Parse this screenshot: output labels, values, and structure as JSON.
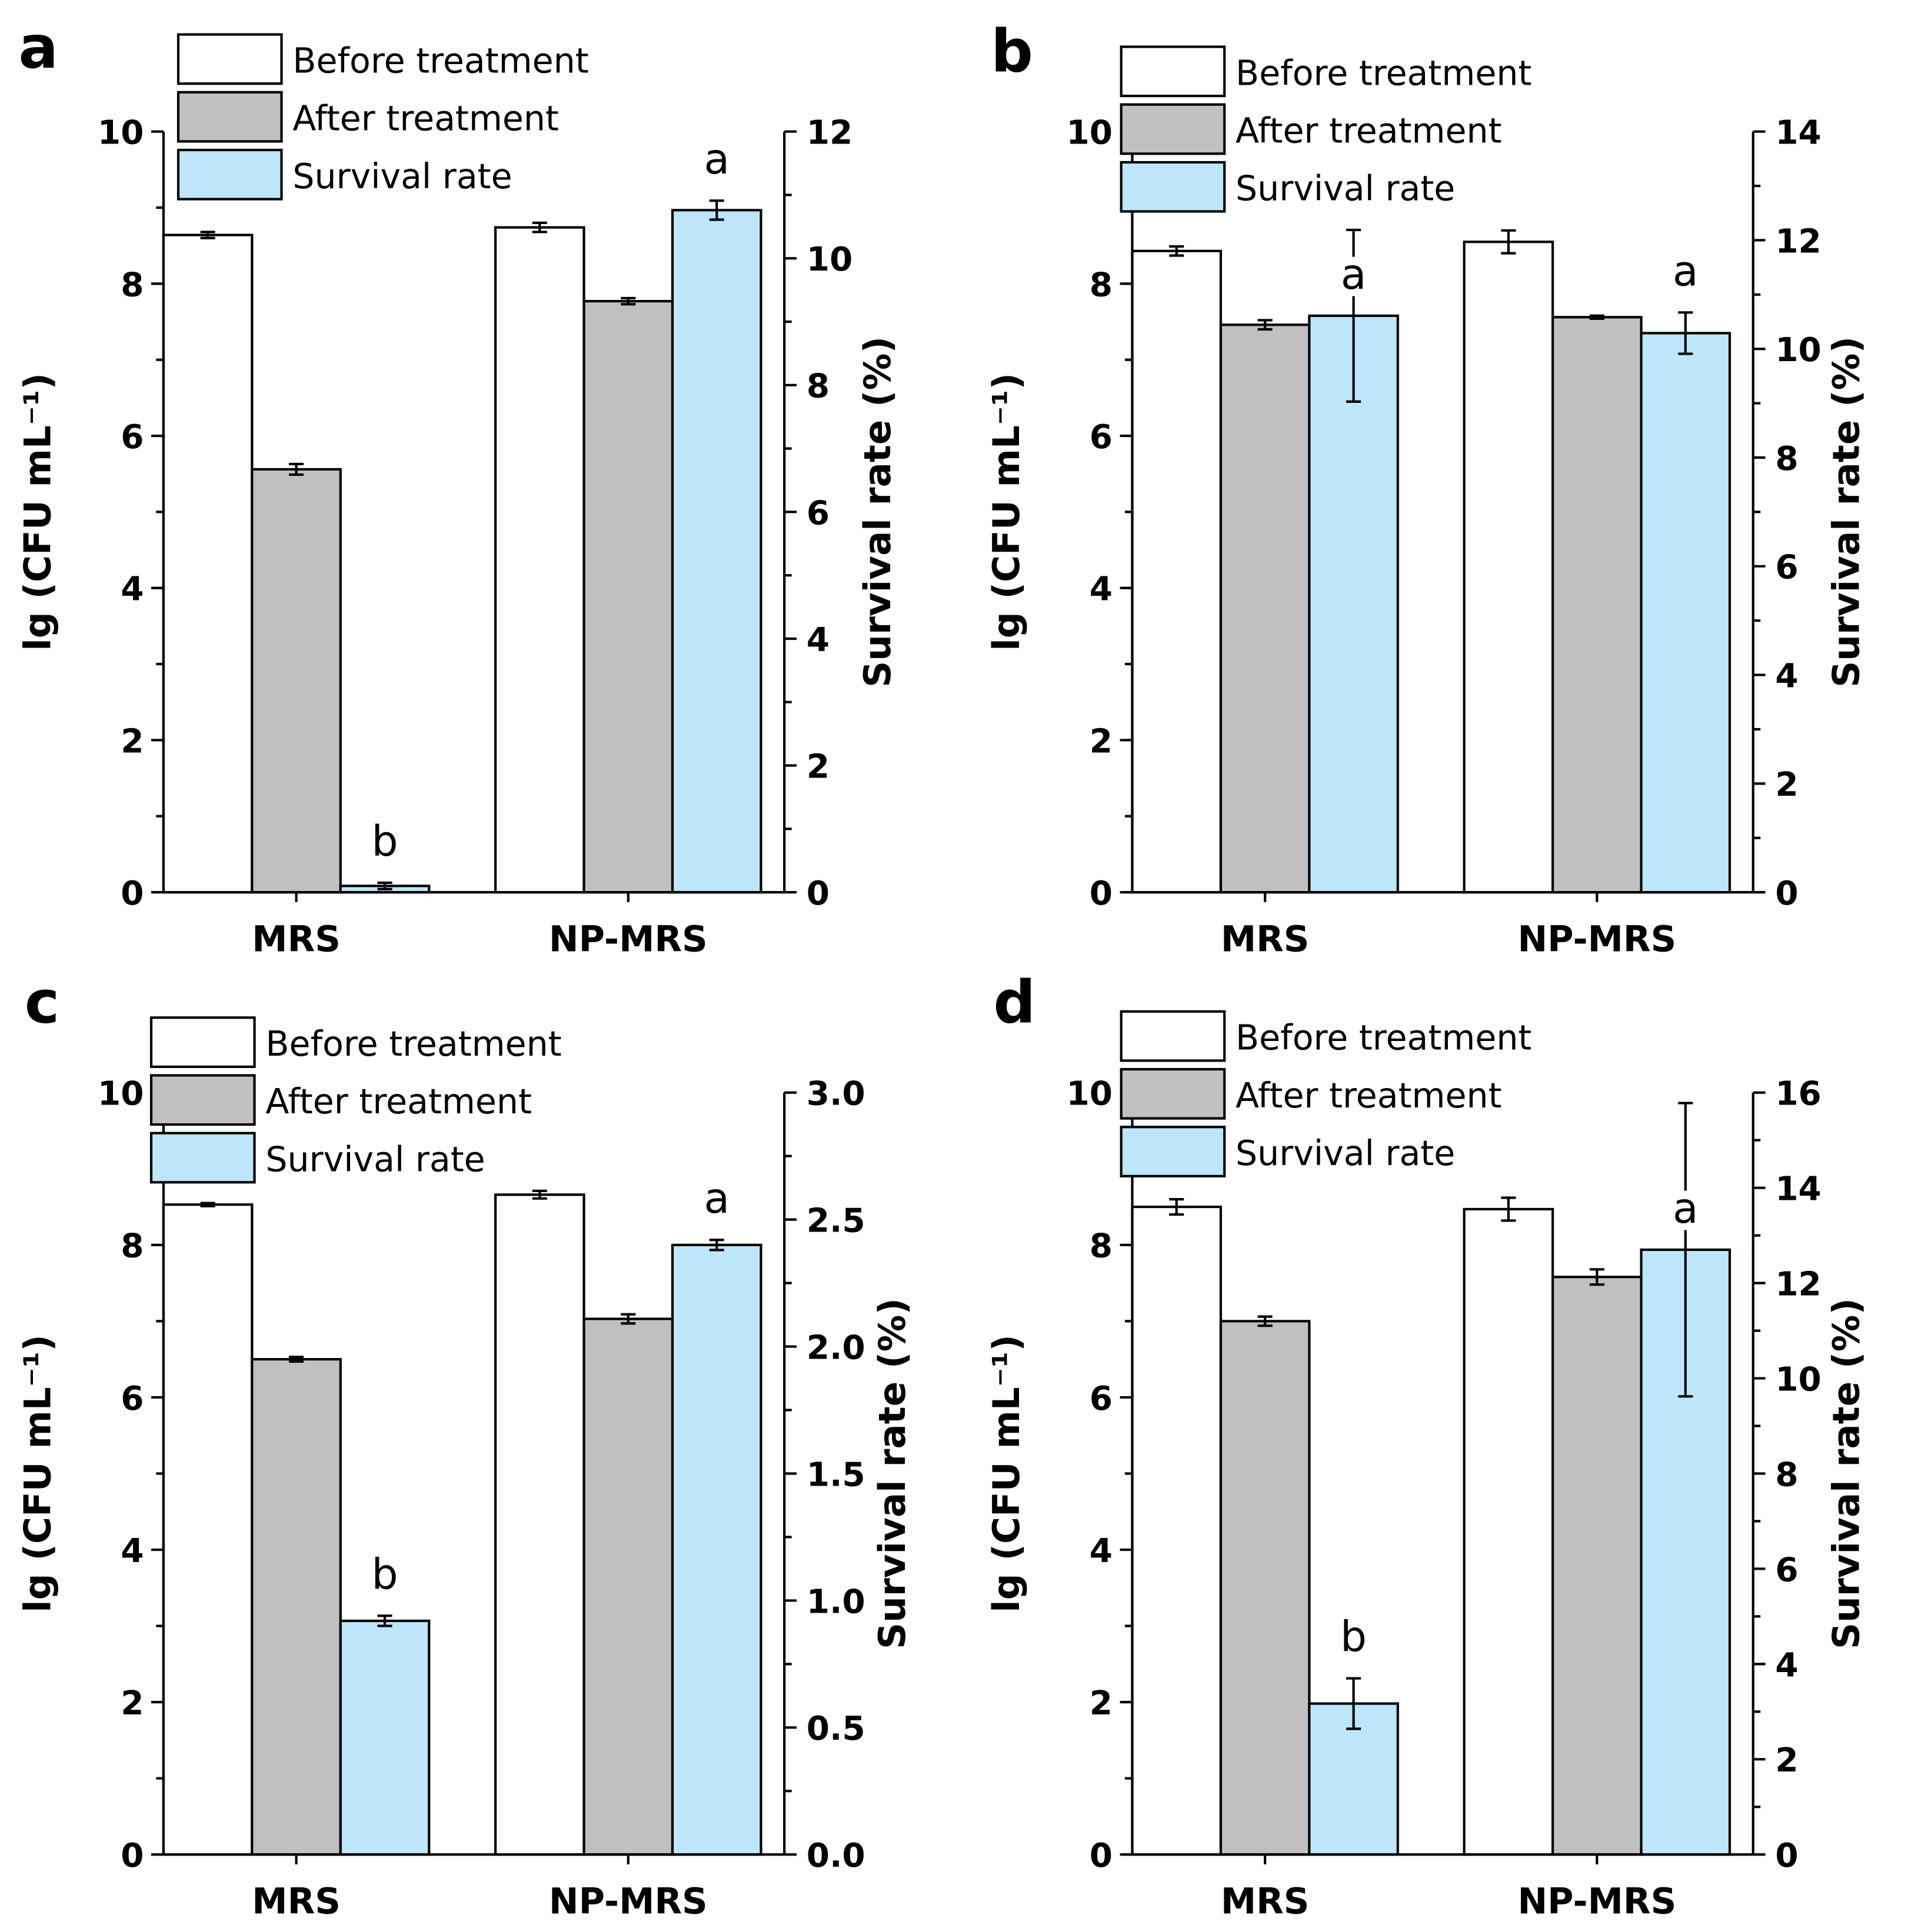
{
  "colors": {
    "before": "#ffffff",
    "after": "#c0c0c0",
    "survival": "#bde6fb",
    "axis": "#000000"
  },
  "chart_data": [
    {
      "type": "bar",
      "panel": "a",
      "categories": [
        "MRS",
        "NP-MRS"
      ],
      "legend": [
        "Before treatment",
        "After treatment",
        "Survival rate"
      ],
      "legend_position": "top-left",
      "ylabel": "lg (CFU mL⁻¹)",
      "ylim": [
        0,
        10
      ],
      "yticks": [
        "0",
        "2",
        "4",
        "6",
        "8",
        "10"
      ],
      "y2label": "Survival rate (%)",
      "y2lim": [
        0,
        12
      ],
      "y2ticks": [
        "0",
        "2",
        "4",
        "6",
        "8",
        "10",
        "12"
      ],
      "series": [
        {
          "name": "Before treatment",
          "axis": "left",
          "values": [
            8.64,
            8.74
          ],
          "errors": [
            0.04,
            0.06
          ]
        },
        {
          "name": "After treatment",
          "axis": "left",
          "values": [
            5.56,
            7.77
          ],
          "errors": [
            0.07,
            0.04
          ]
        },
        {
          "name": "Survival rate",
          "axis": "right",
          "values": [
            0.1,
            10.76
          ],
          "errors": [
            0.05,
            0.15
          ]
        }
      ],
      "significance": [
        "b",
        "a"
      ]
    },
    {
      "type": "bar",
      "panel": "b",
      "categories": [
        "MRS",
        "NP-MRS"
      ],
      "legend": [
        "Before treatment",
        "After treatment",
        "Survival rate"
      ],
      "legend_position": "top-left",
      "ylabel": "lg (CFU mL⁻¹)",
      "ylim": [
        0,
        10
      ],
      "yticks": [
        "0",
        "2",
        "4",
        "6",
        "8",
        "10"
      ],
      "y2label": "Survival rate (%)",
      "y2lim": [
        0,
        14
      ],
      "y2ticks": [
        "0",
        "2",
        "4",
        "6",
        "8",
        "10",
        "12",
        "14"
      ],
      "series": [
        {
          "name": "Before treatment",
          "axis": "left",
          "values": [
            8.43,
            8.55
          ],
          "errors": [
            0.06,
            0.15
          ]
        },
        {
          "name": "After treatment",
          "axis": "left",
          "values": [
            7.46,
            7.56
          ],
          "errors": [
            0.06,
            0.02
          ]
        },
        {
          "name": "Survival rate",
          "axis": "right",
          "values": [
            10.61,
            10.29
          ],
          "errors": [
            1.58,
            0.38
          ]
        }
      ],
      "significance": [
        "a",
        "a"
      ]
    },
    {
      "type": "bar",
      "panel": "c",
      "categories": [
        "MRS",
        "NP-MRS"
      ],
      "legend": [
        "Before treatment",
        "After treatment",
        "Survival rate"
      ],
      "legend_position": "top-left",
      "ylabel": "lg (CFU mL⁻¹)",
      "ylim": [
        0,
        10
      ],
      "yticks": [
        "0",
        "2",
        "4",
        "6",
        "8",
        "10"
      ],
      "y2label": "Survival rate (%)",
      "y2lim": [
        0,
        3.0
      ],
      "y2ticks": [
        "0.0",
        "0.5",
        "1.0",
        "1.5",
        "2.0",
        "2.5",
        "3.0"
      ],
      "series": [
        {
          "name": "Before treatment",
          "axis": "left",
          "values": [
            8.53,
            8.66
          ],
          "errors": [
            0.02,
            0.05
          ]
        },
        {
          "name": "After treatment",
          "axis": "left",
          "values": [
            6.5,
            7.03
          ],
          "errors": [
            0.03,
            0.06
          ]
        },
        {
          "name": "Survival rate",
          "axis": "right",
          "values": [
            0.92,
            2.4
          ],
          "errors": [
            0.02,
            0.02
          ]
        }
      ],
      "significance": [
        "b",
        "a"
      ]
    },
    {
      "type": "bar",
      "panel": "d",
      "categories": [
        "MRS",
        "NP-MRS"
      ],
      "legend": [
        "Before treatment",
        "After treatment",
        "Survival rate"
      ],
      "legend_position": "top-left",
      "ylabel": "lg (CFU mL⁻¹)",
      "ylim": [
        0,
        10
      ],
      "yticks": [
        "0",
        "2",
        "4",
        "6",
        "8",
        "10"
      ],
      "y2label": "Survival rate (%)",
      "y2lim": [
        0,
        16
      ],
      "y2ticks": [
        "0",
        "2",
        "4",
        "6",
        "8",
        "10",
        "12",
        "14",
        "16"
      ],
      "series": [
        {
          "name": "Before treatment",
          "axis": "left",
          "values": [
            8.5,
            8.47
          ],
          "errors": [
            0.1,
            0.15
          ]
        },
        {
          "name": "After treatment",
          "axis": "left",
          "values": [
            7.0,
            7.58
          ],
          "errors": [
            0.06,
            0.1
          ]
        },
        {
          "name": "Survival rate",
          "axis": "right",
          "values": [
            3.17,
            12.7
          ],
          "errors": [
            0.53,
            3.08
          ]
        }
      ],
      "significance": [
        "b",
        "a"
      ]
    }
  ]
}
